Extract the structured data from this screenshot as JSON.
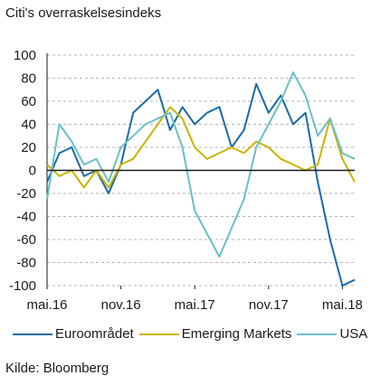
{
  "title": "Citi's overraskelsesindeks",
  "source": "Kilde: Bloomberg",
  "chart_data": {
    "type": "line",
    "title": "Citi's overraskelsesindeks",
    "xlabel": "",
    "ylabel": "",
    "x_ticks": [
      "mai.16",
      "nov.16",
      "mai.17",
      "nov.17",
      "mai.18"
    ],
    "x_tick_dates": [
      "2016-05",
      "2016-11",
      "2017-05",
      "2017-11",
      "2018-05"
    ],
    "x_range": [
      "2016-05",
      "2018-06"
    ],
    "ylim": [
      -100,
      100
    ],
    "y_ticks": [
      100,
      80,
      60,
      40,
      20,
      0,
      -20,
      -40,
      -60,
      -80,
      -100
    ],
    "grid": "horizontal dashed",
    "legend_position": "bottom",
    "x": [
      "2016-05",
      "2016-06",
      "2016-07",
      "2016-08",
      "2016-09",
      "2016-10",
      "2016-11",
      "2016-12",
      "2017-01",
      "2017-02",
      "2017-03",
      "2017-04",
      "2017-05",
      "2017-06",
      "2017-07",
      "2017-08",
      "2017-09",
      "2017-10",
      "2017-11",
      "2017-12",
      "2018-01",
      "2018-02",
      "2018-03",
      "2018-04",
      "2018-05",
      "2018-06"
    ],
    "series": [
      {
        "name": "Euroområdet",
        "color": "#1a6aa8",
        "values": [
          -10,
          15,
          20,
          -5,
          0,
          -20,
          5,
          50,
          60,
          70,
          35,
          55,
          40,
          50,
          55,
          20,
          35,
          75,
          50,
          65,
          40,
          50,
          -10,
          -60,
          -100,
          -95
        ]
      },
      {
        "name": "Emerging Markets",
        "color": "#c8b400",
        "values": [
          5,
          -5,
          0,
          -15,
          0,
          -15,
          5,
          10,
          25,
          40,
          55,
          45,
          20,
          10,
          15,
          20,
          15,
          25,
          20,
          10,
          5,
          0,
          5,
          45,
          10,
          -10
        ]
      },
      {
        "name": "USA",
        "color": "#6bbfc6",
        "values": [
          -25,
          40,
          25,
          5,
          10,
          -10,
          20,
          30,
          40,
          45,
          50,
          20,
          -35,
          -55,
          -75,
          -50,
          -25,
          20,
          40,
          60,
          85,
          65,
          30,
          45,
          15,
          10
        ]
      }
    ]
  }
}
